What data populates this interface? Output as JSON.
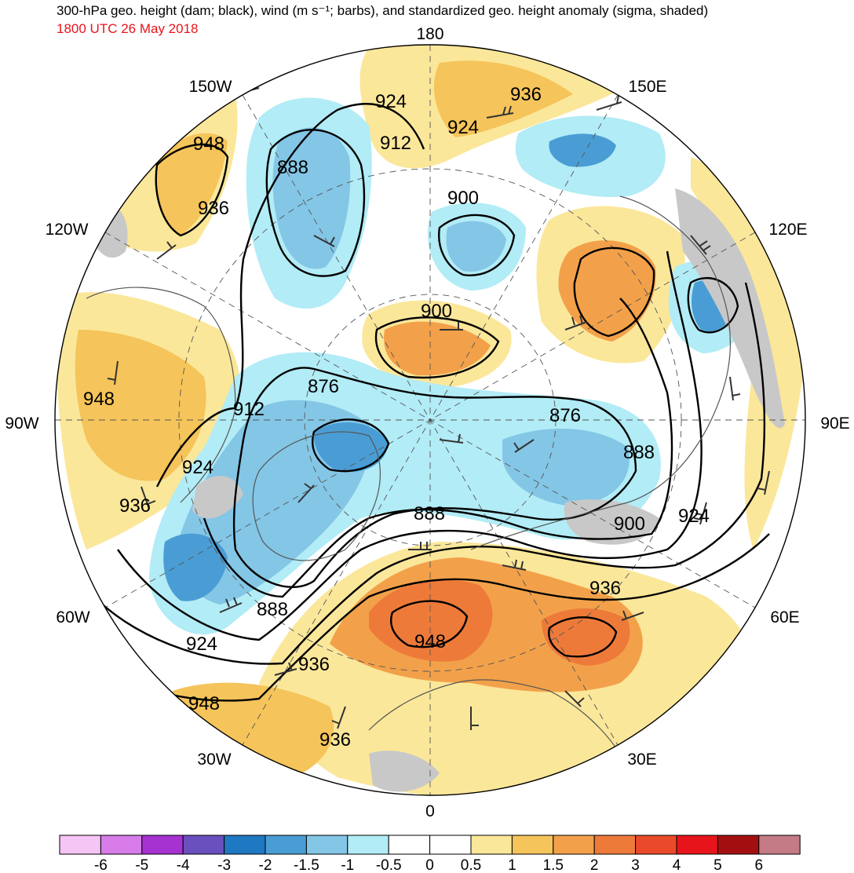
{
  "header": {
    "title": "300-hPa geo. height (dam; black), wind (m s⁻¹; barbs), and standardized geo. height anomaly (sigma, shaded)",
    "valid_time": "1800 UTC 26 May 2018",
    "valid_time_color": "#e8141b"
  },
  "longitude_labels": [
    "180",
    "150E",
    "120E",
    "90E",
    "60E",
    "30E",
    "0",
    "30W",
    "60W",
    "90W",
    "120W",
    "150W"
  ],
  "height_contour_labels": [
    "924",
    "936",
    "924",
    "912",
    "888",
    "900",
    "948",
    "936",
    "900",
    "876",
    "876",
    "888",
    "912",
    "948",
    "924",
    "936",
    "888",
    "900",
    "924",
    "936",
    "888",
    "924",
    "948",
    "936",
    "948",
    "936"
  ],
  "colorbar": {
    "tick_labels": [
      "-6",
      "-5",
      "-4",
      "-3",
      "-2",
      "-1.5",
      "-1",
      "-0.5",
      "0",
      "0.5",
      "1",
      "1.5",
      "2",
      "3",
      "4",
      "5",
      "6"
    ],
    "colors": [
      "#f5c5f5",
      "#d77ce8",
      "#a632d2",
      "#6a4fbf",
      "#1f78c2",
      "#4a9dd4",
      "#84c6e6",
      "#b2ecf6",
      "#ffffff",
      "#ffffff",
      "#fbe79a",
      "#f5c45a",
      "#f2a14a",
      "#ee7a3a",
      "#ea4a2a",
      "#e8141b",
      "#a30f10",
      "#c47b86"
    ]
  },
  "palette": {
    "land_gray": "#c8c8c8",
    "contour": "#000000"
  }
}
